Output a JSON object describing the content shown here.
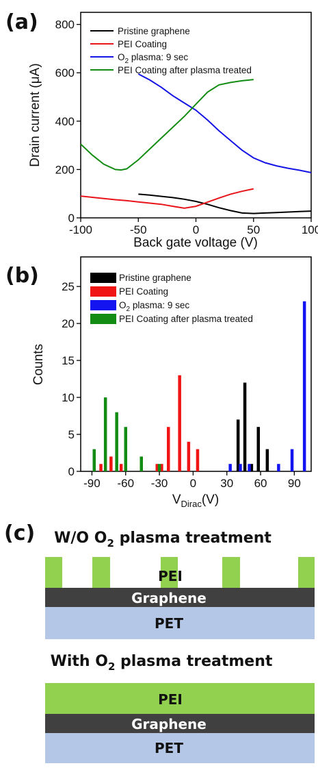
{
  "panel_labels": {
    "a": "(a)",
    "b": "(b)",
    "c": "(c)"
  },
  "chart_data": [
    {
      "type": "line",
      "xlabel": "Back gate voltage (V)",
      "ylabel": "Drain current (μA)",
      "xlim": [
        -100,
        100
      ],
      "ylim": [
        0,
        850
      ],
      "xticks": [
        -100,
        -50,
        0,
        50,
        100
      ],
      "yticks": [
        0,
        200,
        400,
        600,
        800
      ],
      "legend_position": "top-left",
      "series": [
        {
          "name": "Pristine graphene",
          "color": "#000000",
          "x": [
            -50,
            -40,
            -30,
            -20,
            -10,
            0,
            10,
            20,
            30,
            40,
            50,
            60,
            70,
            80,
            90,
            100
          ],
          "y": [
            98,
            94,
            89,
            84,
            77,
            68,
            56,
            42,
            30,
            20,
            18,
            20,
            22,
            24,
            26,
            28
          ]
        },
        {
          "name": "PEI Coating",
          "color": "#e8141a",
          "x": [
            -100,
            -90,
            -80,
            -70,
            -60,
            -50,
            -40,
            -30,
            -20,
            -10,
            0,
            10,
            20,
            30,
            40,
            50
          ],
          "y": [
            90,
            85,
            80,
            75,
            71,
            66,
            61,
            56,
            48,
            40,
            48,
            65,
            82,
            98,
            110,
            120
          ]
        },
        {
          "name": "O₂ plasma: 9 sec",
          "color": "#1414e6",
          "x": [
            -50,
            -40,
            -30,
            -20,
            -10,
            0,
            10,
            20,
            30,
            40,
            50,
            60,
            70,
            80,
            90,
            100
          ],
          "y": [
            595,
            570,
            540,
            505,
            475,
            445,
            405,
            360,
            320,
            280,
            248,
            228,
            215,
            205,
            197,
            187
          ]
        },
        {
          "name": "PEI Coating after plasma treated",
          "color": "#138c13",
          "x": [
            -100,
            -90,
            -80,
            -70,
            -65,
            -60,
            -50,
            -40,
            -30,
            -20,
            -10,
            0,
            10,
            20,
            30,
            40,
            50
          ],
          "y": [
            305,
            260,
            222,
            200,
            198,
            203,
            240,
            285,
            330,
            375,
            420,
            470,
            520,
            550,
            560,
            567,
            572
          ]
        }
      ]
    },
    {
      "type": "bar",
      "xlabel_main": "V",
      "xlabel_sub": "Dirac",
      "xlabel_unit": "(V)",
      "ylabel": "Counts",
      "xlim": [
        -100,
        105
      ],
      "ylim": [
        0,
        29
      ],
      "xticks": [
        -90,
        -60,
        -30,
        0,
        30,
        60,
        90
      ],
      "yticks": [
        0,
        5,
        10,
        15,
        20,
        25
      ],
      "legend_position": "top-left",
      "series": [
        {
          "name": "Pristine graphene",
          "color": "#000000",
          "x": [
            40,
            46,
            52,
            58,
            66
          ],
          "y": [
            7,
            12,
            1,
            6,
            3
          ]
        },
        {
          "name": "PEI Coating",
          "color": "#f01414",
          "x": [
            -82,
            -73,
            -64,
            -32,
            -28,
            -22,
            -12,
            -4,
            4
          ],
          "y": [
            1,
            2,
            1,
            1,
            1,
            6,
            13,
            4,
            3
          ]
        },
        {
          "name": "O₂ plasma: 9 sec",
          "color": "#1414f0",
          "x": [
            33,
            42,
            50,
            76,
            88,
            99
          ],
          "y": [
            1,
            1,
            1,
            1,
            3,
            23
          ]
        },
        {
          "name": "PEI Coating after plasma treated",
          "color": "#138c13",
          "x": [
            -88,
            -78,
            -68,
            -60,
            -46,
            -30
          ],
          "y": [
            3,
            10,
            8,
            6,
            2,
            1
          ]
        }
      ]
    }
  ],
  "schematic": {
    "top_title_a": "W/O O",
    "top_title_sub": "2",
    "top_title_b": " plasma treatment",
    "bottom_title_a": "With O",
    "bottom_title_sub": "2",
    "bottom_title_b": " plasma treatment",
    "pei_label": "PEI",
    "graphene_label": "Graphene",
    "pet_label": "PET",
    "colors": {
      "pei": "#92d050",
      "graphene": "#404040",
      "pet": "#b4c7e7"
    }
  }
}
